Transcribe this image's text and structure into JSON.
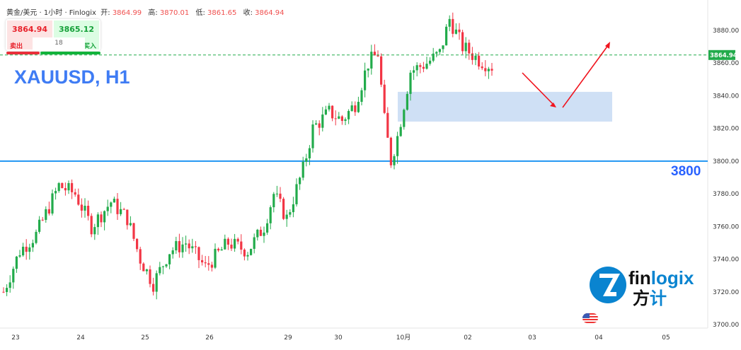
{
  "header": {
    "symbol": "黄金/美元 · 1小时 · Finlogix",
    "open_label": "开:",
    "open": "3864.99",
    "high_label": "高:",
    "high": "3870.01",
    "low_label": "低:",
    "low": "3861.65",
    "close_label": "收:",
    "close": "3864.94"
  },
  "trade": {
    "sell_price": "3864.94",
    "buy_price": "3865.12",
    "sell_label": "卖出",
    "buy_label": "买入",
    "spread": "18"
  },
  "colors": {
    "up": "#22ab4b",
    "down": "#f23645",
    "level": "#2196f3",
    "zone": "#cfe0f5",
    "arrow": "#f0141e"
  },
  "annotation": {
    "title": "XAUUSD, H1",
    "level_label": "3800"
  },
  "logo": {
    "text": "finlogix 方计"
  },
  "chart_data": {
    "type": "candlestick",
    "title": "XAUUSD, H1",
    "ylim": [
      3695,
      3897
    ],
    "y_ticks": [
      3700,
      3720,
      3740,
      3760,
      3780,
      3800,
      3820,
      3840,
      3860,
      3880
    ],
    "y_tick_labels": [
      "3700.00",
      "3720.00",
      "3740.00",
      "3760.00",
      "3780.00",
      "3800.00",
      "3820.00",
      "3840.00",
      "3860.00",
      "3880.00"
    ],
    "x_labels": [
      "23",
      "24",
      "25",
      "26",
      "29",
      "30",
      "10月",
      "02",
      "03",
      "04",
      "05"
    ],
    "current_price": 3864.94,
    "current_price_label": "3864.94",
    "horizontal_level": 3800,
    "zone": [
      3824.2,
      3842.4
    ],
    "path_waypoints": [
      [
        0,
        3720
      ],
      [
        5,
        3745
      ],
      [
        10,
        3755
      ],
      [
        17,
        3785
      ],
      [
        22,
        3780
      ],
      [
        27,
        3760
      ],
      [
        33,
        3775
      ],
      [
        38,
        3765
      ],
      [
        42,
        3740
      ],
      [
        46,
        3725
      ],
      [
        51,
        3745
      ],
      [
        56,
        3750
      ],
      [
        62,
        3735
      ],
      [
        69,
        3750
      ],
      [
        75,
        3745
      ],
      [
        80,
        3760
      ],
      [
        83,
        3780
      ],
      [
        87,
        3765
      ],
      [
        92,
        3795
      ],
      [
        95,
        3820
      ],
      [
        100,
        3830
      ],
      [
        104,
        3825
      ],
      [
        108,
        3835
      ],
      [
        112,
        3860
      ],
      [
        115,
        3866
      ],
      [
        117,
        3825
      ],
      [
        119,
        3800
      ],
      [
        121,
        3815
      ],
      [
        125,
        3855
      ],
      [
        130,
        3860
      ],
      [
        134,
        3866
      ],
      [
        137,
        3887
      ],
      [
        141,
        3870
      ],
      [
        146,
        3862
      ],
      [
        150,
        3858
      ]
    ]
  }
}
